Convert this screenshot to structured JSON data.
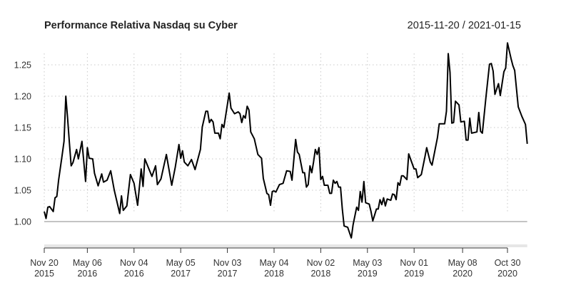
{
  "chart_data": {
    "type": "line",
    "title": "Performance Relativa Nasdaq su Cyber",
    "date_range_label": "2015-11-20 / 2021-01-15",
    "xlabel": "",
    "ylabel": "",
    "ylim": [
      0.958,
      1.29
    ],
    "xlim": [
      "2015-11-20",
      "2021-01-15"
    ],
    "grid": true,
    "reference_line": 1.0,
    "line_color": "#000000",
    "y_ticks": [
      "1.00",
      "1.05",
      "1.10",
      "1.15",
      "1.20",
      "1.25"
    ],
    "x_ticks": [
      {
        "date": "2015-11-20",
        "label1": "Nov 20",
        "label2": "2015"
      },
      {
        "date": "2016-05-06",
        "label1": "May 06",
        "label2": "2016"
      },
      {
        "date": "2016-11-04",
        "label1": "Nov 04",
        "label2": "2016"
      },
      {
        "date": "2017-05-05",
        "label1": "May 05",
        "label2": "2017"
      },
      {
        "date": "2017-11-03",
        "label1": "Nov 03",
        "label2": "2017"
      },
      {
        "date": "2018-05-04",
        "label1": "May 04",
        "label2": "2018"
      },
      {
        "date": "2018-11-02",
        "label1": "Nov 02",
        "label2": "2018"
      },
      {
        "date": "2019-05-03",
        "label1": "May 03",
        "label2": "2019"
      },
      {
        "date": "2019-11-01",
        "label1": "Nov 01",
        "label2": "2019"
      },
      {
        "date": "2020-05-08",
        "label1": "May 08",
        "label2": "2020"
      },
      {
        "date": "2020-10-30",
        "label1": "Oct 30",
        "label2": "2020"
      }
    ],
    "series": [
      {
        "x": [
          "2015-11-20",
          "2015-11-27",
          "2015-12-04",
          "2015-12-11",
          "2015-12-25",
          "2016-01-01",
          "2016-01-08",
          "2016-01-15",
          "2016-01-29",
          "2016-02-05",
          "2016-02-12",
          "2016-02-19",
          "2016-02-26",
          "2016-03-04",
          "2016-03-11",
          "2016-03-25",
          "2016-04-01",
          "2016-04-15",
          "2016-04-29",
          "2016-05-06",
          "2016-05-13",
          "2016-05-27",
          "2016-06-03",
          "2016-06-17",
          "2016-07-01",
          "2016-07-08",
          "2016-07-22",
          "2016-08-05",
          "2016-08-19",
          "2016-09-09",
          "2016-09-16",
          "2016-09-23",
          "2016-10-07",
          "2016-10-21",
          "2016-11-04",
          "2016-11-18",
          "2016-12-02",
          "2016-12-09",
          "2016-12-16",
          "2017-01-13",
          "2017-01-27",
          "2017-02-03",
          "2017-02-17",
          "2017-03-10",
          "2017-03-31",
          "2017-04-14",
          "2017-04-28",
          "2017-05-05",
          "2017-05-12",
          "2017-05-19",
          "2017-06-02",
          "2017-06-16",
          "2017-06-30",
          "2017-07-21",
          "2017-07-28",
          "2017-08-11",
          "2017-08-18",
          "2017-08-25",
          "2017-09-01",
          "2017-09-08",
          "2017-09-15",
          "2017-09-29",
          "2017-10-06",
          "2017-10-13",
          "2017-10-20",
          "2017-11-10",
          "2017-11-17",
          "2017-12-01",
          "2017-12-15",
          "2017-12-22",
          "2017-12-29",
          "2018-01-05",
          "2018-01-12",
          "2018-01-19",
          "2018-01-26",
          "2018-02-02",
          "2018-02-16",
          "2018-03-02",
          "2018-03-16",
          "2018-03-23",
          "2018-04-06",
          "2018-04-13",
          "2018-04-20",
          "2018-04-27",
          "2018-05-04",
          "2018-05-11",
          "2018-05-25",
          "2018-06-08",
          "2018-06-22",
          "2018-07-06",
          "2018-07-13",
          "2018-07-27",
          "2018-08-03",
          "2018-08-10",
          "2018-08-24",
          "2018-08-31",
          "2018-09-07",
          "2018-09-14",
          "2018-09-21",
          "2018-09-28",
          "2018-10-05",
          "2018-10-12",
          "2018-10-19",
          "2018-10-26",
          "2018-11-02",
          "2018-11-09",
          "2018-11-16",
          "2018-11-30",
          "2018-12-07",
          "2018-12-14",
          "2018-12-21",
          "2018-12-28",
          "2019-01-04",
          "2019-01-11",
          "2019-01-18",
          "2019-01-25",
          "2019-02-01",
          "2019-02-15",
          "2019-03-01",
          "2019-03-08",
          "2019-03-22",
          "2019-03-29",
          "2019-04-05",
          "2019-04-12",
          "2019-04-19",
          "2019-04-26",
          "2019-05-10",
          "2019-05-17",
          "2019-05-24",
          "2019-06-07",
          "2019-06-14",
          "2019-06-21",
          "2019-06-28",
          "2019-07-05",
          "2019-07-12",
          "2019-07-19",
          "2019-08-02",
          "2019-08-09",
          "2019-08-16",
          "2019-08-23",
          "2019-08-30",
          "2019-09-06",
          "2019-09-13",
          "2019-09-20",
          "2019-10-04",
          "2019-10-11",
          "2019-11-01",
          "2019-11-08",
          "2019-11-15",
          "2019-11-29",
          "2019-12-13",
          "2019-12-20",
          "2020-01-03",
          "2020-01-10",
          "2020-01-31",
          "2020-02-07",
          "2020-02-28",
          "2020-03-06",
          "2020-03-13",
          "2020-03-20",
          "2020-03-27",
          "2020-04-03",
          "2020-04-10",
          "2020-04-24",
          "2020-05-01",
          "2020-05-15",
          "2020-05-22",
          "2020-05-29",
          "2020-06-05",
          "2020-06-12",
          "2020-07-03",
          "2020-07-10",
          "2020-07-17",
          "2020-07-24",
          "2020-08-07",
          "2020-08-21",
          "2020-08-28",
          "2020-09-04",
          "2020-09-11",
          "2020-09-25",
          "2020-10-02",
          "2020-10-16",
          "2020-10-23",
          "2020-10-30",
          "2020-11-13",
          "2020-11-20",
          "2020-11-27",
          "2020-12-11",
          "2020-12-25",
          "2021-01-08",
          "2021-01-15"
        ],
        "y": [
          1.016,
          1.005,
          1.023,
          1.024,
          1.016,
          1.038,
          1.04,
          1.066,
          1.107,
          1.128,
          1.2,
          1.165,
          1.126,
          1.089,
          1.094,
          1.115,
          1.1,
          1.128,
          1.064,
          1.118,
          1.101,
          1.1,
          1.077,
          1.057,
          1.076,
          1.063,
          1.066,
          1.081,
          1.05,
          1.013,
          1.041,
          1.018,
          1.025,
          1.075,
          1.061,
          1.026,
          1.084,
          1.056,
          1.1,
          1.072,
          1.089,
          1.059,
          1.068,
          1.107,
          1.058,
          1.087,
          1.123,
          1.101,
          1.113,
          1.095,
          1.089,
          1.099,
          1.083,
          1.115,
          1.151,
          1.176,
          1.176,
          1.158,
          1.163,
          1.159,
          1.141,
          1.141,
          1.132,
          1.155,
          1.15,
          1.205,
          1.181,
          1.172,
          1.175,
          1.172,
          1.158,
          1.169,
          1.165,
          1.184,
          1.178,
          1.143,
          1.132,
          1.107,
          1.101,
          1.069,
          1.045,
          1.043,
          1.026,
          1.048,
          1.049,
          1.047,
          1.059,
          1.061,
          1.081,
          1.08,
          1.066,
          1.131,
          1.111,
          1.107,
          1.078,
          1.078,
          1.055,
          1.059,
          1.089,
          1.078,
          1.095,
          1.115,
          1.107,
          1.118,
          1.067,
          1.072,
          1.058,
          1.058,
          1.045,
          1.045,
          1.066,
          1.061,
          1.064,
          1.055,
          1.055,
          1.02,
          0.993,
          0.991,
          0.974,
          0.995,
          1.023,
          1.018,
          1.048,
          1.031,
          1.064,
          1.03,
          1.028,
          1.016,
          1.001,
          1.02,
          1.02,
          1.035,
          1.027,
          1.038,
          1.025,
          1.036,
          1.034,
          1.044,
          1.043,
          1.035,
          1.062,
          1.058,
          1.073,
          1.073,
          1.067,
          1.108,
          1.084,
          1.084,
          1.07,
          1.075,
          1.103,
          1.118,
          1.095,
          1.09,
          1.134,
          1.156,
          1.156,
          1.176,
          1.268,
          1.238,
          1.157,
          1.158,
          1.192,
          1.186,
          1.159,
          1.16,
          1.13,
          1.13,
          1.165,
          1.141,
          1.143,
          1.174,
          1.144,
          1.141,
          1.198,
          1.251,
          1.252,
          1.24,
          1.203,
          1.22,
          1.201,
          1.239,
          1.245,
          1.285,
          1.26,
          1.249,
          1.241,
          1.183,
          1.168,
          1.155,
          1.124
        ]
      }
    ]
  }
}
